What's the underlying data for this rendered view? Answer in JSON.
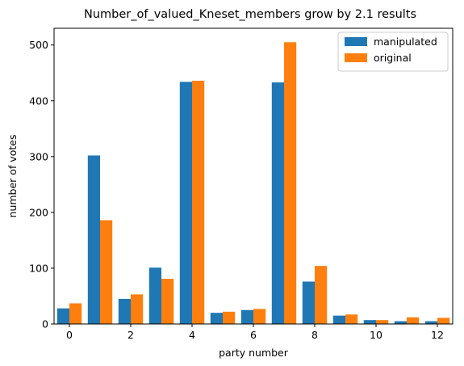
{
  "chart_data": {
    "type": "bar",
    "title": "Number_of_valued_Kneset_members grow by 2.1 results",
    "xlabel": "party number",
    "ylabel": "number of votes",
    "categories": [
      0,
      1,
      2,
      3,
      4,
      5,
      6,
      7,
      8,
      9,
      10,
      11,
      12
    ],
    "xticks": [
      0,
      2,
      4,
      6,
      8,
      10,
      12
    ],
    "yticks": [
      0,
      100,
      200,
      300,
      400,
      500
    ],
    "xlim": [
      -0.5,
      12.5
    ],
    "ylim": [
      0,
      530
    ],
    "grid": false,
    "legend_position": "top-right",
    "series": [
      {
        "name": "manipulated",
        "color": "#1f77b4",
        "values": [
          28,
          302,
          45,
          101,
          434,
          20,
          25,
          433,
          76,
          15,
          7,
          5,
          5
        ]
      },
      {
        "name": "original",
        "color": "#ff7f0e",
        "values": [
          37,
          186,
          53,
          81,
          436,
          22,
          27,
          505,
          104,
          17,
          7,
          12,
          11
        ]
      }
    ]
  }
}
